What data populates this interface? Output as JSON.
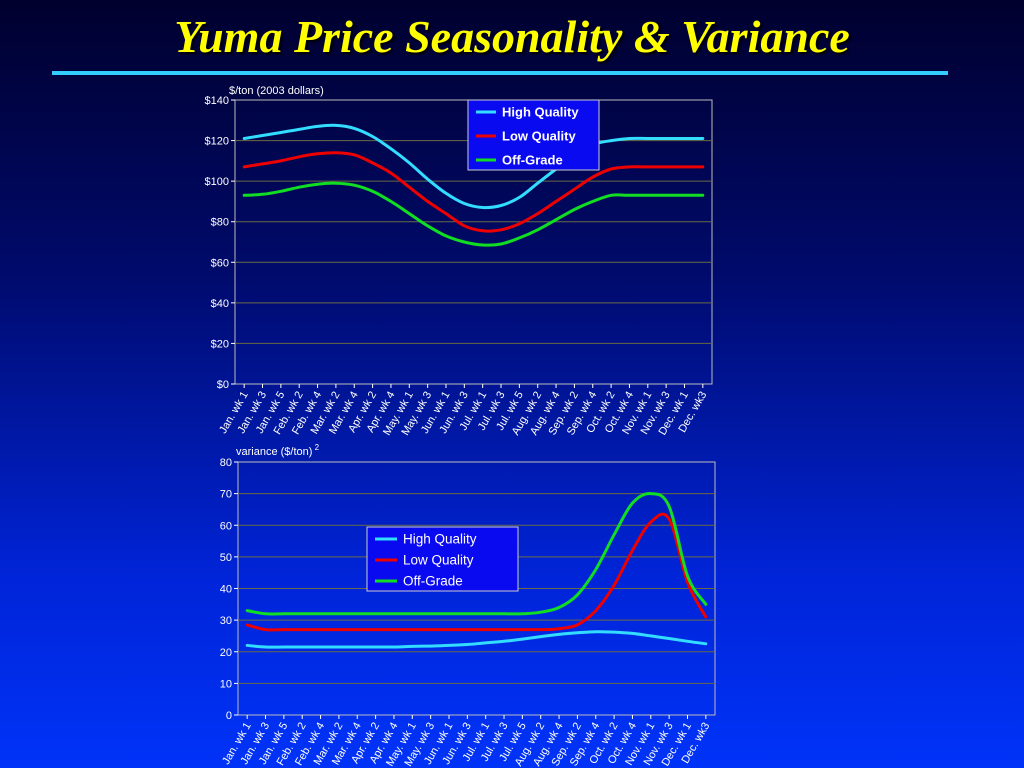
{
  "slide": {
    "title": "Yuma Price Seasonality & Variance",
    "accent_color": "#33ccff",
    "title_color": "#ffff00"
  },
  "chart_data": [
    {
      "type": "line",
      "ylabel": "$/ton (2003 dollars)",
      "ylim": [
        0,
        140
      ],
      "yticks": [
        "$0",
        "$20",
        "$40",
        "$60",
        "$80",
        "$100",
        "$120",
        "$140"
      ],
      "xticks": [
        "Jan. wk 1",
        "Jan. wk 3",
        "Jan. wk 5",
        "Feb. wk 2",
        "Feb. wk 4",
        "Mar. wk 2",
        "Mar. wk 4",
        "Apr. wk 2",
        "Apr. wk 4",
        "May. wk 1",
        "May. wk 3",
        "Jun. wk 1",
        "Jun. wk 3",
        "Jul. wk 1",
        "Jul. wk 3",
        "Jul. wk 5",
        "Aug. wk 2",
        "Aug. wk 4",
        "Sep. wk 2",
        "Sep. wk 4",
        "Oct. wk 2",
        "Oct. wk 4",
        "Nov. wk 1",
        "Nov. wk 3",
        "Dec. wk 1",
        "Dec. wk3"
      ],
      "grid": true,
      "legend_position": "top-right",
      "x": [
        0,
        1,
        2,
        3,
        4,
        5,
        6,
        7,
        8,
        9,
        10,
        11,
        12,
        13,
        14,
        15,
        16,
        17,
        18,
        19,
        20,
        21,
        22,
        23,
        24,
        25
      ],
      "series": [
        {
          "name": "High Quality",
          "color": "#33ddff",
          "values": [
            121,
            122.5,
            124,
            125.5,
            127,
            127.5,
            126,
            122,
            116,
            109,
            101,
            94,
            89,
            87,
            88,
            92,
            99,
            106,
            113,
            118,
            120,
            121,
            121,
            121,
            121,
            121
          ]
        },
        {
          "name": "Low Quality",
          "color": "#ee0000",
          "values": [
            107,
            108.5,
            110,
            112,
            113.5,
            114,
            113,
            109,
            104,
            97,
            90,
            84,
            78,
            75.5,
            76,
            79,
            84,
            90,
            96,
            102,
            106,
            107,
            107,
            107,
            107,
            107
          ]
        },
        {
          "name": "Off-Grade",
          "color": "#11dd22",
          "values": [
            93,
            93.5,
            95,
            97,
            98.5,
            99,
            98,
            95,
            90,
            84,
            78,
            73,
            70,
            68.5,
            69,
            72,
            76,
            81,
            86,
            90,
            93,
            93,
            93,
            93,
            93,
            93
          ]
        }
      ]
    },
    {
      "type": "line",
      "ylabel": "variance ($/ton)",
      "ylabel_superscript": "2",
      "ylim": [
        0,
        80
      ],
      "yticks": [
        "0",
        "10",
        "20",
        "30",
        "40",
        "50",
        "60",
        "70",
        "80"
      ],
      "xticks": [
        "Jan. wk 1",
        "Jan. wk 3",
        "Jan. wk 5",
        "Feb. wk 2",
        "Feb. wk 4",
        "Mar. wk 2",
        "Mar. wk 4",
        "Apr. wk 2",
        "Apr. wk 4",
        "May. wk 1",
        "May. wk 3",
        "Jun. wk 1",
        "Jun. wk 3",
        "Jul. wk 1",
        "Jul. wk 3",
        "Jul. wk 5",
        "Aug. wk 2",
        "Aug. wk 4",
        "Sep. wk 2",
        "Sep. wk 4",
        "Oct. wk 2",
        "Oct. wk 4",
        "Nov. wk 1",
        "Nov. wk 3",
        "Dec. wk 1",
        "Dec. wk3"
      ],
      "grid": true,
      "legend_position": "center-left",
      "x": [
        0,
        1,
        2,
        3,
        4,
        5,
        6,
        7,
        8,
        9,
        10,
        11,
        12,
        13,
        14,
        15,
        16,
        17,
        18,
        19,
        20,
        21,
        22,
        23,
        24,
        25
      ],
      "series": [
        {
          "name": "High Quality",
          "color": "#33ddff",
          "values": [
            22,
            21.5,
            21.5,
            21.5,
            21.5,
            21.5,
            21.5,
            21.5,
            21.5,
            21.7,
            21.8,
            22,
            22.3,
            22.8,
            23.3,
            24,
            24.8,
            25.5,
            26,
            26.3,
            26.2,
            25.8,
            25,
            24.2,
            23.3,
            22.5
          ]
        },
        {
          "name": "Low Quality",
          "color": "#ee0000",
          "values": [
            28.5,
            27,
            27,
            27,
            27,
            27,
            27,
            27,
            27,
            27,
            27,
            27,
            27,
            27,
            27,
            27,
            27,
            27.3,
            28.5,
            33,
            41,
            52,
            61,
            62,
            42,
            31
          ]
        },
        {
          "name": "Off-Grade",
          "color": "#11dd22",
          "values": [
            33,
            32,
            32,
            32,
            32,
            32,
            32,
            32,
            32,
            32,
            32,
            32,
            32,
            32,
            32,
            32,
            32.5,
            34,
            38,
            46,
            57,
            67,
            70,
            66,
            44,
            35
          ]
        }
      ]
    }
  ]
}
